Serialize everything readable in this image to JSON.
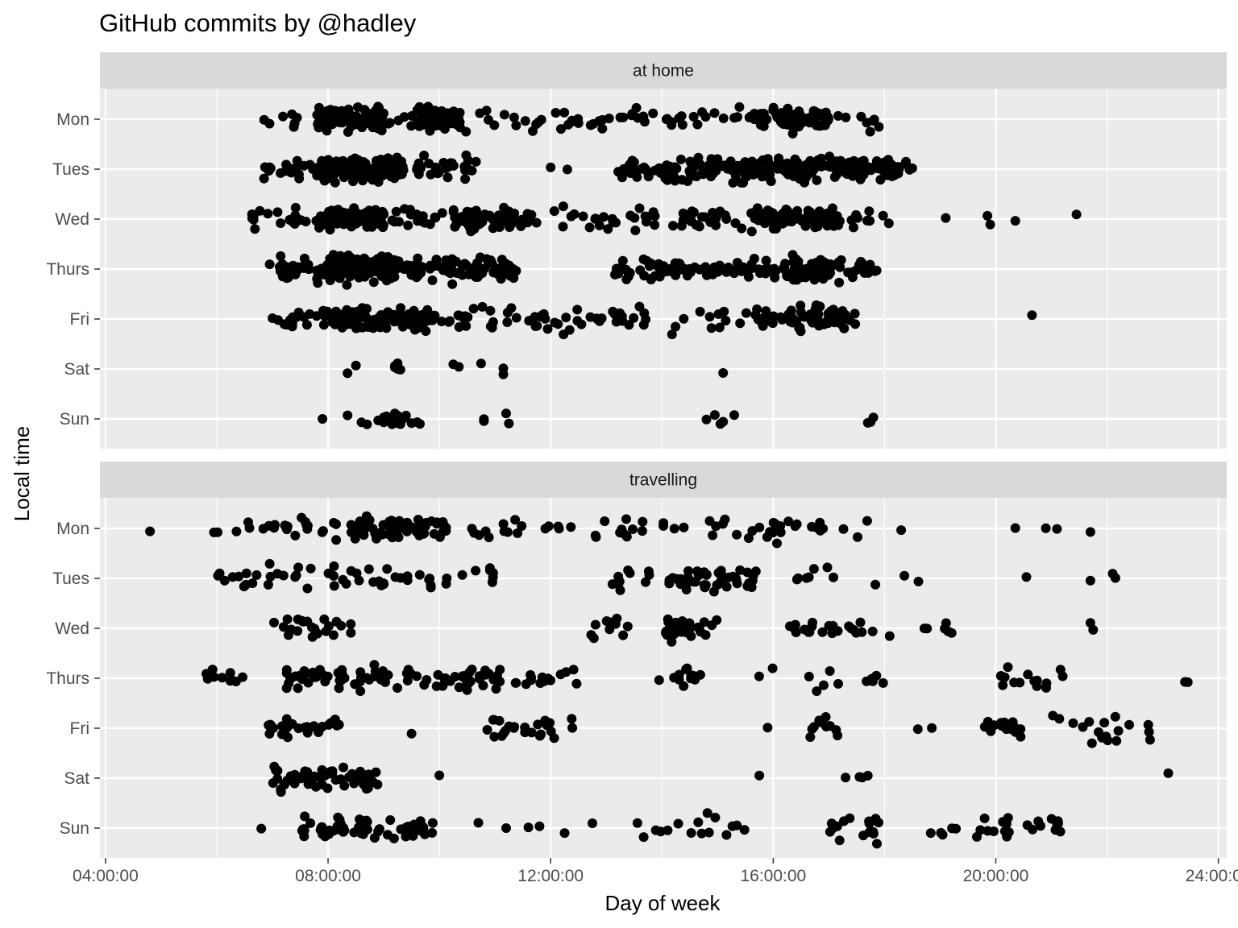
{
  "chart_data": {
    "type": "scatter",
    "title": "GitHub commits by @hadley",
    "xlabel": "Day of week",
    "ylabel": "Local time",
    "x_range_hours": [
      3.9,
      24.15
    ],
    "x_ticks": [
      {
        "hour": 4,
        "label": "04:00:00"
      },
      {
        "hour": 8,
        "label": "08:00:00"
      },
      {
        "hour": 12,
        "label": "12:00:00"
      },
      {
        "hour": 16,
        "label": "16:00:00"
      },
      {
        "hour": 20,
        "label": "20:00:00"
      },
      {
        "hour": 24,
        "label": "24:00:00"
      }
    ],
    "days": [
      "Mon",
      "Tues",
      "Wed",
      "Thurs",
      "Fri",
      "Sat",
      "Sun"
    ],
    "grid": true,
    "colors": {
      "panel": "#ebebeb",
      "strip": "#d9d9d9",
      "grid": "#ffffff",
      "point": "#000000"
    },
    "facets": [
      {
        "label": "at home",
        "clusters": [
          {
            "day": "Mon",
            "from": 6.9,
            "to": 18.0,
            "n": 110
          },
          {
            "day": "Mon",
            "from": 7.8,
            "to": 9.0,
            "n": 80
          },
          {
            "day": "Mon",
            "from": 9.6,
            "to": 10.4,
            "n": 50
          },
          {
            "day": "Mon",
            "from": 16.0,
            "to": 17.0,
            "n": 60
          },
          {
            "day": "Tues",
            "from": 6.8,
            "to": 10.7,
            "n": 90
          },
          {
            "day": "Tues",
            "from": 7.8,
            "to": 9.2,
            "n": 130
          },
          {
            "day": "Tues",
            "from": 13.2,
            "to": 18.4,
            "n": 170
          },
          {
            "day": "Tues",
            "from": 15.4,
            "to": 17.6,
            "n": 90
          },
          {
            "day": "Wed",
            "from": 6.6,
            "to": 18.1,
            "n": 150
          },
          {
            "day": "Wed",
            "from": 7.8,
            "to": 9.0,
            "n": 80
          },
          {
            "day": "Wed",
            "from": 10.4,
            "to": 11.4,
            "n": 40
          },
          {
            "day": "Wed",
            "from": 15.6,
            "to": 17.2,
            "n": 60
          },
          {
            "day": "Thurs",
            "from": 7.1,
            "to": 11.4,
            "n": 200
          },
          {
            "day": "Thurs",
            "from": 7.9,
            "to": 9.3,
            "n": 90
          },
          {
            "day": "Thurs",
            "from": 13.1,
            "to": 17.9,
            "n": 120
          },
          {
            "day": "Thurs",
            "from": 16.2,
            "to": 17.0,
            "n": 40
          },
          {
            "day": "Fri",
            "from": 7.0,
            "to": 17.5,
            "n": 130
          },
          {
            "day": "Fri",
            "from": 7.9,
            "to": 9.2,
            "n": 60
          },
          {
            "day": "Fri",
            "from": 9.2,
            "to": 9.8,
            "n": 40
          },
          {
            "day": "Fri",
            "from": 15.7,
            "to": 17.3,
            "n": 50
          }
        ],
        "points": [
          {
            "day": "Mon",
            "x": 6.85
          },
          {
            "day": "Tues",
            "x": 12.0
          },
          {
            "day": "Tues",
            "x": 12.3
          },
          {
            "day": "Tues",
            "x": 18.45
          },
          {
            "day": "Tues",
            "x": 18.5
          },
          {
            "day": "Wed",
            "x": 19.1
          },
          {
            "day": "Wed",
            "x": 19.85
          },
          {
            "day": "Wed",
            "x": 19.9
          },
          {
            "day": "Wed",
            "x": 20.35
          },
          {
            "day": "Wed",
            "x": 21.45
          },
          {
            "day": "Thurs",
            "x": 6.95
          },
          {
            "day": "Fri",
            "x": 20.65
          },
          {
            "day": "Sat",
            "x": 8.35
          },
          {
            "day": "Sat",
            "x": 8.5
          },
          {
            "day": "Sat",
            "x": 9.2
          },
          {
            "day": "Sat",
            "x": 9.25
          },
          {
            "day": "Sat",
            "x": 9.3
          },
          {
            "day": "Sat",
            "x": 9.2
          },
          {
            "day": "Sat",
            "x": 9.25
          },
          {
            "day": "Sat",
            "x": 10.25
          },
          {
            "day": "Sat",
            "x": 10.35
          },
          {
            "day": "Sat",
            "x": 10.75
          },
          {
            "day": "Sat",
            "x": 11.15
          },
          {
            "day": "Sat",
            "x": 11.15
          },
          {
            "day": "Sat",
            "x": 15.1
          },
          {
            "day": "Sun",
            "x": 7.9
          },
          {
            "day": "Sun",
            "x": 8.35
          },
          {
            "day": "Sun",
            "x": 8.6
          },
          {
            "day": "Sun",
            "x": 8.7
          },
          {
            "day": "Sun",
            "x": 8.9
          },
          {
            "day": "Sun",
            "x": 9.0
          },
          {
            "day": "Sun",
            "x": 9.05
          },
          {
            "day": "Sun",
            "x": 9.1
          },
          {
            "day": "Sun",
            "x": 9.15
          },
          {
            "day": "Sun",
            "x": 9.2
          },
          {
            "day": "Sun",
            "x": 9.25
          },
          {
            "day": "Sun",
            "x": 9.3
          },
          {
            "day": "Sun",
            "x": 9.35
          },
          {
            "day": "Sun",
            "x": 9.4
          },
          {
            "day": "Sun",
            "x": 9.5
          },
          {
            "day": "Sun",
            "x": 9.6
          },
          {
            "day": "Sun",
            "x": 9.65
          },
          {
            "day": "Sun",
            "x": 9.2
          },
          {
            "day": "Sun",
            "x": 9.25
          },
          {
            "day": "Sun",
            "x": 9.0
          },
          {
            "day": "Sun",
            "x": 10.8
          },
          {
            "day": "Sun",
            "x": 10.8
          },
          {
            "day": "Sun",
            "x": 11.2
          },
          {
            "day": "Sun",
            "x": 11.25
          },
          {
            "day": "Sun",
            "x": 14.8
          },
          {
            "day": "Sun",
            "x": 14.95
          },
          {
            "day": "Sun",
            "x": 15.05
          },
          {
            "day": "Sun",
            "x": 15.1
          },
          {
            "day": "Sun",
            "x": 15.3
          },
          {
            "day": "Sun",
            "x": 17.7
          },
          {
            "day": "Sun",
            "x": 17.75
          },
          {
            "day": "Sun",
            "x": 17.8
          }
        ]
      },
      {
        "label": "travelling",
        "clusters": [
          {
            "day": "Mon",
            "from": 5.9,
            "to": 17.7,
            "n": 95
          },
          {
            "day": "Mon",
            "from": 8.4,
            "to": 10.2,
            "n": 55
          },
          {
            "day": "Tues",
            "from": 6.0,
            "to": 11.1,
            "n": 55
          },
          {
            "day": "Tues",
            "from": 12.9,
            "to": 13.8,
            "n": 12
          },
          {
            "day": "Tues",
            "from": 14.1,
            "to": 15.7,
            "n": 45
          },
          {
            "day": "Tues",
            "from": 16.2,
            "to": 19.4,
            "n": 10
          },
          {
            "day": "Wed",
            "from": 6.9,
            "to": 8.5,
            "n": 22
          },
          {
            "day": "Wed",
            "from": 12.6,
            "to": 13.4,
            "n": 10
          },
          {
            "day": "Wed",
            "from": 14.0,
            "to": 14.5,
            "n": 32
          },
          {
            "day": "Wed",
            "from": 14.5,
            "to": 15.0,
            "n": 8
          },
          {
            "day": "Wed",
            "from": 16.0,
            "to": 19.3,
            "n": 28
          },
          {
            "day": "Thurs",
            "from": 5.8,
            "to": 6.5,
            "n": 10
          },
          {
            "day": "Thurs",
            "from": 7.2,
            "to": 12.5,
            "n": 95
          },
          {
            "day": "Thurs",
            "from": 14.2,
            "to": 14.7,
            "n": 12
          },
          {
            "day": "Thurs",
            "from": 15.6,
            "to": 18.2,
            "n": 12
          },
          {
            "day": "Thurs",
            "from": 19.9,
            "to": 21.3,
            "n": 14
          },
          {
            "day": "Fri",
            "from": 6.9,
            "to": 8.2,
            "n": 30
          },
          {
            "day": "Fri",
            "from": 10.6,
            "to": 12.5,
            "n": 24
          },
          {
            "day": "Fri",
            "from": 16.6,
            "to": 17.3,
            "n": 10
          },
          {
            "day": "Fri",
            "from": 19.8,
            "to": 20.5,
            "n": 14
          },
          {
            "day": "Fri",
            "from": 21.0,
            "to": 22.9,
            "n": 18
          },
          {
            "day": "Sat",
            "from": 7.0,
            "to": 8.9,
            "n": 58
          },
          {
            "day": "Sun",
            "from": 7.5,
            "to": 9.9,
            "n": 62
          },
          {
            "day": "Sun",
            "from": 13.5,
            "to": 15.5,
            "n": 16
          },
          {
            "day": "Sun",
            "from": 17.0,
            "to": 17.9,
            "n": 16
          },
          {
            "day": "Sun",
            "from": 18.8,
            "to": 21.2,
            "n": 26
          }
        ],
        "points": [
          {
            "day": "Mon",
            "x": 4.8
          },
          {
            "day": "Mon",
            "x": 5.95
          },
          {
            "day": "Mon",
            "x": 18.3
          },
          {
            "day": "Mon",
            "x": 20.35
          },
          {
            "day": "Mon",
            "x": 20.9
          },
          {
            "day": "Mon",
            "x": 21.1
          },
          {
            "day": "Mon",
            "x": 21.7
          },
          {
            "day": "Tues",
            "x": 20.55
          },
          {
            "day": "Tues",
            "x": 21.7
          },
          {
            "day": "Tues",
            "x": 22.1
          },
          {
            "day": "Tues",
            "x": 22.15
          },
          {
            "day": "Wed",
            "x": 21.7
          },
          {
            "day": "Wed",
            "x": 21.75
          },
          {
            "day": "Thurs",
            "x": 13.95
          },
          {
            "day": "Thurs",
            "x": 23.45
          },
          {
            "day": "Thurs",
            "x": 23.4
          },
          {
            "day": "Fri",
            "x": 9.5
          },
          {
            "day": "Fri",
            "x": 15.9
          },
          {
            "day": "Fri",
            "x": 18.6
          },
          {
            "day": "Fri",
            "x": 18.85
          },
          {
            "day": "Sat",
            "x": 10.0
          },
          {
            "day": "Sat",
            "x": 15.75
          },
          {
            "day": "Sat",
            "x": 17.3
          },
          {
            "day": "Sat",
            "x": 17.55
          },
          {
            "day": "Sat",
            "x": 17.6
          },
          {
            "day": "Sat",
            "x": 17.7
          },
          {
            "day": "Sat",
            "x": 23.1
          },
          {
            "day": "Sun",
            "x": 6.8
          },
          {
            "day": "Sun",
            "x": 10.7
          },
          {
            "day": "Sun",
            "x": 11.2
          },
          {
            "day": "Sun",
            "x": 11.6
          },
          {
            "day": "Sun",
            "x": 11.8
          },
          {
            "day": "Sun",
            "x": 12.25
          },
          {
            "day": "Sun",
            "x": 12.75
          }
        ]
      }
    ]
  }
}
